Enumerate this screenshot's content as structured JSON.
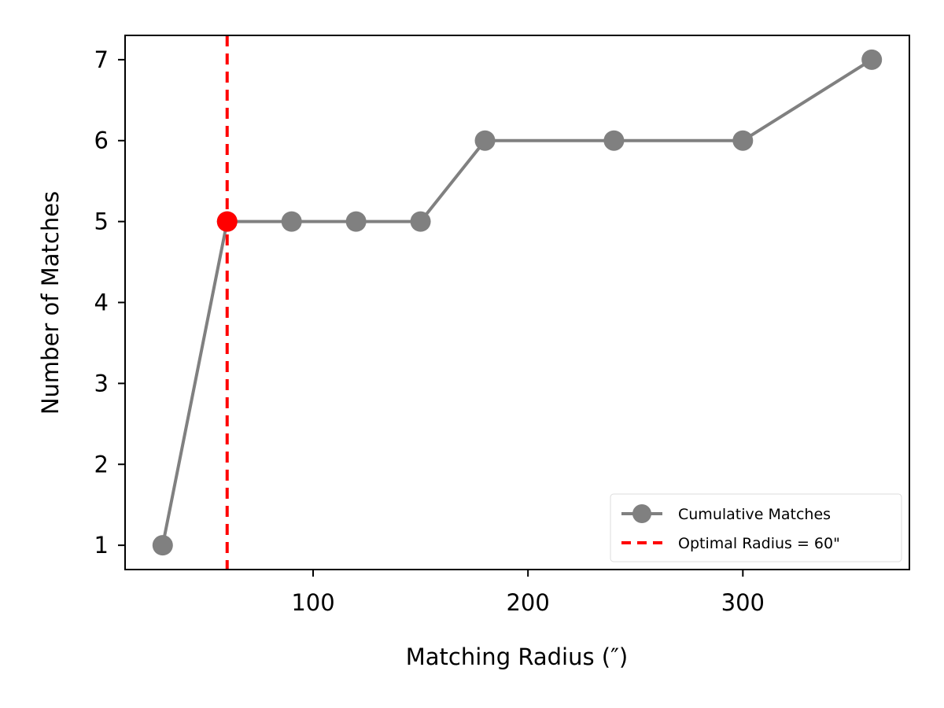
{
  "chart_data": {
    "type": "line",
    "title": "",
    "xlabel": "Matching Radius (″)",
    "ylabel": "Number of Matches",
    "xlim": [
      12.5,
      377.5
    ],
    "ylim": [
      0.7,
      7.3
    ],
    "xticks": [
      100,
      200,
      300
    ],
    "yticks": [
      1,
      2,
      3,
      4,
      5,
      6,
      7
    ],
    "grid": false,
    "legend_position": "lower-right",
    "series": [
      {
        "name": "Cumulative Matches",
        "color": "#808080",
        "marker": "circle",
        "x": [
          30,
          60,
          90,
          120,
          150,
          180,
          240,
          300,
          360
        ],
        "y": [
          1,
          5,
          5,
          5,
          5,
          6,
          6,
          6,
          7
        ]
      }
    ],
    "highlight_point": {
      "x": 60,
      "y": 5,
      "color": "#ff0000"
    },
    "vline": {
      "x": 60,
      "label": "Optimal Radius = 60\"",
      "color": "#ff0000",
      "style": "dashed"
    }
  }
}
